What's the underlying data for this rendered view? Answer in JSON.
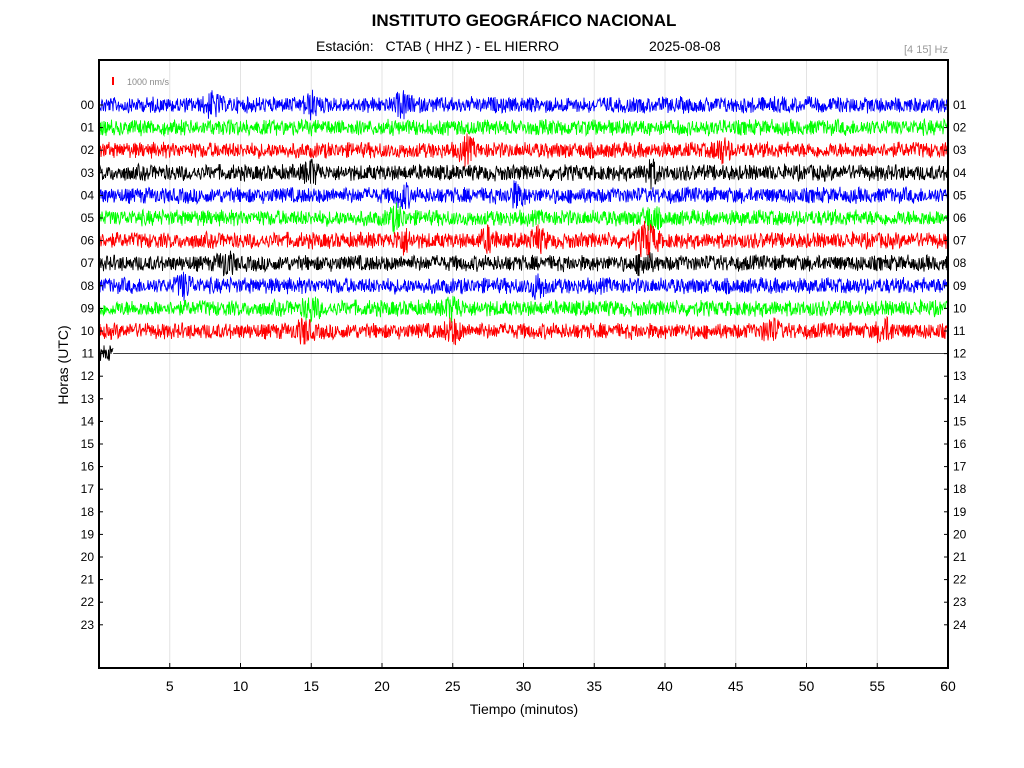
{
  "chart_data": {
    "type": "line",
    "title": "INSTITUTO GEOGRÁFICO NACIONAL",
    "station_label": "Estación:",
    "station": "CTAB ( HHZ ) - EL HIERRO",
    "date": "2025-08-08",
    "filter": "[4 15] Hz",
    "scale_label": "1000 nm/s",
    "xlabel": "Tiempo (minutos)",
    "ylabel": "Horas (UTC)",
    "xlim": [
      0,
      60
    ],
    "x_ticks": [
      "5",
      "10",
      "15",
      "20",
      "25",
      "30",
      "35",
      "40",
      "45",
      "50",
      "55",
      "60"
    ],
    "left_hours": [
      "00",
      "01",
      "02",
      "03",
      "04",
      "05",
      "06",
      "07",
      "08",
      "09",
      "10",
      "11",
      "12",
      "13",
      "14",
      "15",
      "16",
      "17",
      "18",
      "19",
      "20",
      "21",
      "22",
      "23"
    ],
    "right_hours": [
      "01",
      "02",
      "03",
      "04",
      "05",
      "06",
      "07",
      "08",
      "09",
      "10",
      "11",
      "12",
      "13",
      "14",
      "15",
      "16",
      "17",
      "18",
      "19",
      "20",
      "21",
      "22",
      "23",
      "24"
    ],
    "grid": true,
    "trace_colors": [
      "#0000ff",
      "#00ff00",
      "#ff0000",
      "#000000"
    ],
    "series": [
      {
        "hour": "00",
        "color": "#0000ff",
        "minutes_recorded": 60,
        "events_min": [
          8,
          15,
          21.5
        ]
      },
      {
        "hour": "01",
        "color": "#00ff00",
        "minutes_recorded": 60,
        "events_min": []
      },
      {
        "hour": "02",
        "color": "#ff0000",
        "minutes_recorded": 60,
        "events_min": [
          26,
          44
        ]
      },
      {
        "hour": "03",
        "color": "#000000",
        "minutes_recorded": 60,
        "events_min": [
          15,
          39
        ]
      },
      {
        "hour": "04",
        "color": "#0000ff",
        "minutes_recorded": 60,
        "events_min": [
          21.5,
          29.5
        ]
      },
      {
        "hour": "05",
        "color": "#00ff00",
        "minutes_recorded": 60,
        "events_min": [
          21,
          39
        ]
      },
      {
        "hour": "06",
        "color": "#ff0000",
        "minutes_recorded": 60,
        "events_min": [
          21.5,
          27.5,
          31,
          38.5,
          39
        ]
      },
      {
        "hour": "07",
        "color": "#000000",
        "minutes_recorded": 60,
        "events_min": [
          9,
          38.5
        ]
      },
      {
        "hour": "08",
        "color": "#0000ff",
        "minutes_recorded": 60,
        "events_min": [
          6,
          31
        ]
      },
      {
        "hour": "09",
        "color": "#00ff00",
        "minutes_recorded": 60,
        "events_min": [
          15,
          25
        ]
      },
      {
        "hour": "10",
        "color": "#ff0000",
        "minutes_recorded": 60,
        "events_min": [
          14.5,
          25,
          47.5,
          55.5
        ]
      },
      {
        "hour": "11",
        "color": "#000000",
        "minutes_recorded": 1,
        "events_min": []
      }
    ]
  }
}
